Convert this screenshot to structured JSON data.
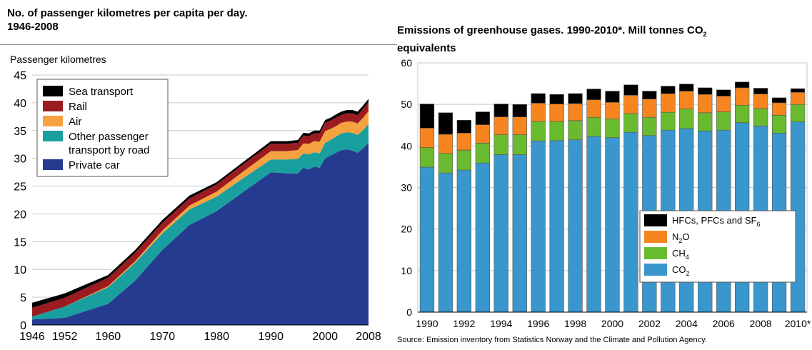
{
  "left_chart": {
    "title_line1": "No. of passenger kilometres per capita per day.",
    "title_line2": "1946-2008",
    "ylabel": "Passenger kilometres"
  },
  "right_chart": {
    "title_line1_text": "Emissions of greenhouse gases. 1990-2010*. Mill tonnes CO",
    "title_line1_sub": "2",
    "title_line2": "equivalents",
    "source": "Source: Emission inventory from Statistics Norway and the Climate and Pollution Agency."
  },
  "chart_data": [
    {
      "type": "area",
      "stacked": true,
      "ylabel": "Passenger kilometres",
      "ylim": [
        0,
        45
      ],
      "yticks": [
        0,
        5,
        10,
        15,
        20,
        25,
        30,
        35,
        40,
        45
      ],
      "xticks": [
        1946,
        1952,
        1960,
        1970,
        1980,
        1990,
        2000,
        2008
      ],
      "xlim": [
        1946,
        2008
      ],
      "grid": true,
      "legend_position": "top-left",
      "x": [
        1946,
        1952,
        1960,
        1965,
        1970,
        1975,
        1980,
        1985,
        1990,
        1993,
        1995,
        1996,
        1997,
        1998,
        1999,
        2000,
        2001,
        2002,
        2003,
        2004,
        2005,
        2006,
        2007,
        2008
      ],
      "series": [
        {
          "name": "Private car",
          "color": "#243b8f",
          "values": [
            1.0,
            1.3,
            3.8,
            8.0,
            13.5,
            18.0,
            20.5,
            24.0,
            27.5,
            27.3,
            27.3,
            28.3,
            28.0,
            28.5,
            28.3,
            30.0,
            30.5,
            31.0,
            31.5,
            31.6,
            31.4,
            31.0,
            31.8,
            32.8
          ]
        },
        {
          "name": "Other passenger transport by road",
          "color": "#19a09e",
          "values": [
            0.5,
            2.0,
            3.0,
            3.2,
            3.0,
            2.8,
            2.6,
            2.5,
            2.3,
            2.5,
            2.6,
            2.6,
            2.7,
            2.6,
            2.6,
            2.8,
            2.8,
            2.9,
            3.0,
            3.1,
            3.2,
            3.2,
            3.3,
            3.4
          ]
        },
        {
          "name": "Air",
          "color": "#f7a240",
          "values": [
            0.0,
            0.0,
            0.2,
            0.3,
            0.5,
            0.7,
            0.9,
            1.2,
            1.5,
            1.5,
            1.6,
            1.8,
            1.9,
            2.0,
            2.1,
            2.1,
            2.0,
            1.9,
            1.9,
            1.9,
            2.0,
            2.1,
            2.2,
            2.3
          ]
        },
        {
          "name": "Rail",
          "color": "#9b1c20",
          "values": [
            1.6,
            1.6,
            1.5,
            1.5,
            1.4,
            1.3,
            1.3,
            1.3,
            1.3,
            1.3,
            1.3,
            1.4,
            1.4,
            1.4,
            1.5,
            1.5,
            1.5,
            1.5,
            1.4,
            1.5,
            1.5,
            1.5,
            1.6,
            1.6
          ]
        },
        {
          "name": "Sea transport",
          "color": "#000000",
          "values": [
            0.9,
            0.8,
            0.5,
            0.5,
            0.5,
            0.5,
            0.4,
            0.4,
            0.5,
            0.5,
            0.5,
            0.5,
            0.5,
            0.5,
            0.5,
            0.5,
            0.5,
            0.6,
            0.6,
            0.6,
            0.6,
            0.6,
            0.6,
            0.6
          ]
        }
      ],
      "legend": [
        {
          "label": "Sea transport",
          "color": "#000000"
        },
        {
          "label": "Rail",
          "color": "#9b1c20"
        },
        {
          "label": "Air",
          "color": "#f7a240"
        },
        {
          "label": "Other passenger\ntransport by road",
          "color": "#19a09e"
        },
        {
          "label": "Private car",
          "color": "#243b8f"
        }
      ]
    },
    {
      "type": "bar",
      "stacked": true,
      "ylim": [
        0,
        60
      ],
      "yticks": [
        0,
        10,
        20,
        30,
        40,
        50,
        60
      ],
      "grid": true,
      "legend_position": "bottom-right",
      "categories": [
        "1990",
        "1991",
        "1992",
        "1993",
        "1994",
        "1995",
        "1996",
        "1997",
        "1998",
        "1999",
        "2000",
        "2001",
        "2002",
        "2003",
        "2004",
        "2005",
        "2006",
        "2007",
        "2008",
        "2009",
        "2010*"
      ],
      "category_labels": [
        "1990",
        "",
        "1992",
        "",
        "1994",
        "",
        "1996",
        "",
        "1998",
        "",
        "2000",
        "",
        "2002",
        "",
        "2004",
        "",
        "2006",
        "",
        "2008",
        "",
        "2010*"
      ],
      "series": [
        {
          "name": "CO",
          "sub": "2",
          "color": "#3a97cd",
          "values": [
            34.9,
            33.5,
            34.2,
            35.9,
            37.9,
            37.9,
            41.2,
            41.3,
            41.5,
            42.3,
            42.0,
            43.3,
            42.5,
            43.8,
            44.2,
            43.6,
            43.8,
            45.6,
            44.8,
            43.1,
            45.8
          ]
        },
        {
          "name": "CH",
          "sub": "4",
          "color": "#6aba2f",
          "values": [
            4.7,
            4.7,
            4.8,
            4.8,
            4.8,
            4.8,
            4.7,
            4.6,
            4.6,
            4.6,
            4.5,
            4.5,
            4.4,
            4.3,
            4.7,
            4.4,
            4.4,
            4.2,
            4.2,
            4.3,
            4.2
          ]
        },
        {
          "name": "N",
          "sub": "2",
          "suffix": "O",
          "color": "#f7851f",
          "values": [
            4.7,
            4.6,
            4.1,
            4.4,
            4.3,
            4.3,
            4.4,
            4.2,
            4.1,
            4.2,
            4.0,
            4.4,
            4.4,
            4.5,
            4.3,
            4.4,
            3.8,
            4.2,
            3.5,
            3.0,
            2.9
          ]
        },
        {
          "name": "HFCs, PFCs and  SF",
          "sub": "6",
          "color": "#000000",
          "values": [
            5.8,
            5.2,
            3.1,
            3.1,
            3.1,
            3.0,
            2.3,
            2.3,
            2.4,
            2.6,
            2.7,
            2.5,
            1.9,
            1.8,
            1.7,
            1.6,
            1.5,
            1.4,
            1.4,
            1.2,
            0.9
          ]
        }
      ]
    }
  ]
}
